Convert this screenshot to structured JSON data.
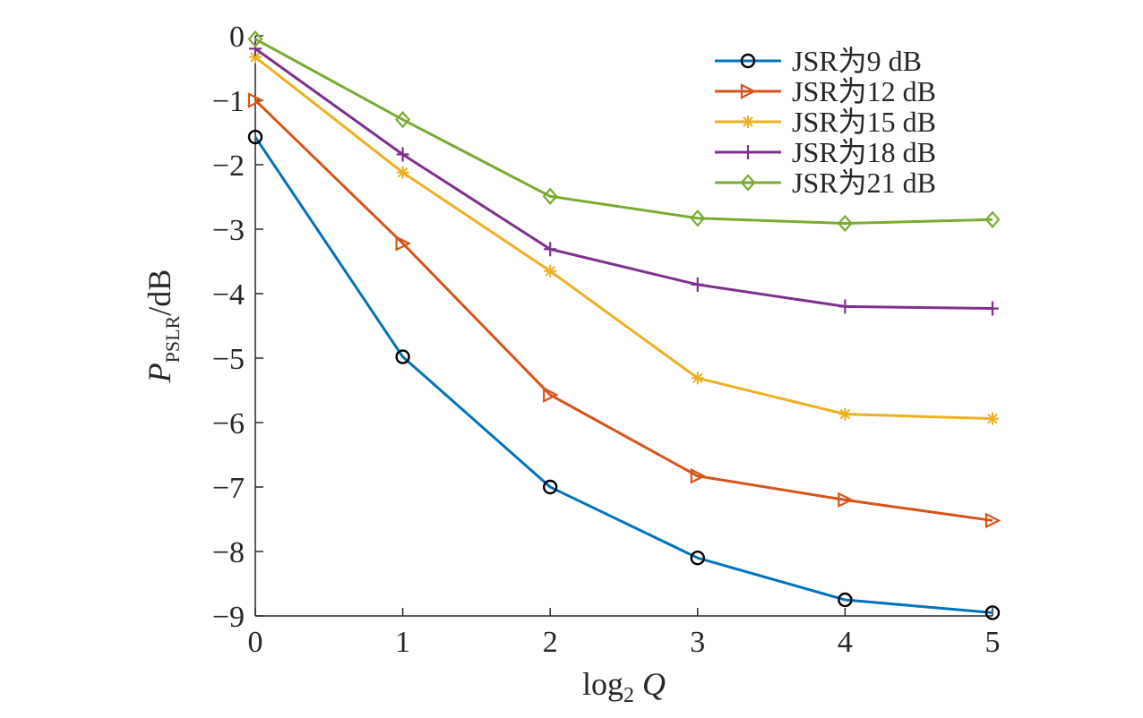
{
  "chart_data": {
    "type": "line",
    "x": [
      0,
      1,
      2,
      3,
      4,
      5
    ],
    "xlabel": "log2 Q",
    "xlabel_parts": {
      "main": "log",
      "sub": "2",
      "var": "Q"
    },
    "ylabel": "PPSLR/dB",
    "ylabel_parts": {
      "main": "P",
      "sub": "PSLR",
      "unit": "/dB"
    },
    "xlim": [
      0,
      5
    ],
    "ylim": [
      -9,
      0
    ],
    "xticks": [
      "0",
      "1",
      "2",
      "3",
      "4",
      "5"
    ],
    "yticks": [
      "0",
      "−1",
      "−2",
      "−3",
      "−4",
      "−5",
      "−6",
      "−7",
      "−8",
      "−9"
    ],
    "grid": false,
    "legend_position": "top-right",
    "series": [
      {
        "name": "JSR为9 dB",
        "color": "#0072BD",
        "marker": "circle",
        "values": [
          -1.57,
          -4.98,
          -7.0,
          -8.1,
          -8.75,
          -8.95
        ]
      },
      {
        "name": "JSR为12 dB",
        "color": "#D95319",
        "marker": "triangle-right",
        "values": [
          -1.0,
          -3.22,
          -5.57,
          -6.83,
          -7.2,
          -7.52
        ]
      },
      {
        "name": "JSR为15 dB",
        "color": "#EDB120",
        "marker": "asterisk",
        "values": [
          -0.33,
          -2.12,
          -3.65,
          -5.31,
          -5.87,
          -5.94
        ]
      },
      {
        "name": "JSR为18 dB",
        "color": "#7E2F8E",
        "marker": "plus",
        "values": [
          -0.2,
          -1.84,
          -3.31,
          -3.86,
          -4.2,
          -4.23
        ]
      },
      {
        "name": "JSR为21 dB",
        "color": "#77AC30",
        "marker": "diamond",
        "values": [
          -0.05,
          -1.3,
          -2.49,
          -2.83,
          -2.91,
          -2.85
        ]
      }
    ]
  }
}
